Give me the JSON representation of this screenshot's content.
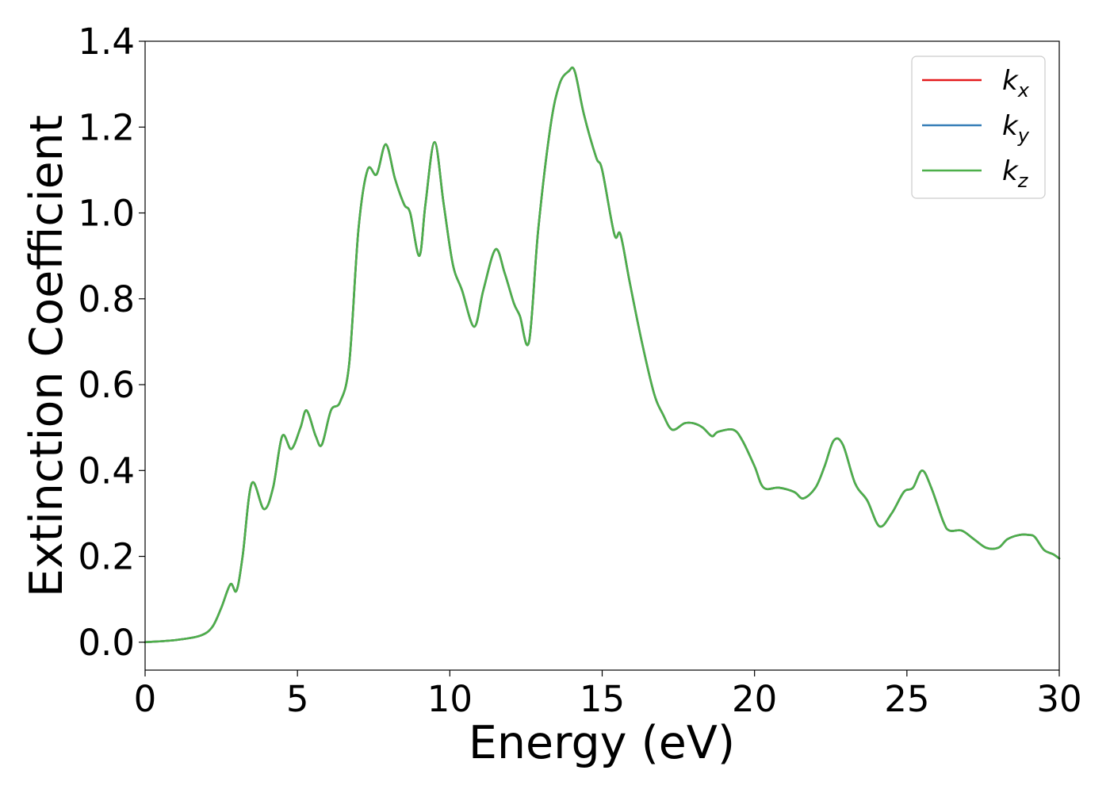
{
  "chart_data": {
    "type": "line",
    "xlabel": "Energy (eV)",
    "ylabel": "Extinction Coefficient",
    "xlim": [
      0,
      30
    ],
    "ylim": [
      -0.065,
      1.4
    ],
    "xticks": [
      0,
      5,
      10,
      15,
      20,
      25,
      30
    ],
    "xtick_labels": [
      "0",
      "5",
      "10",
      "15",
      "20",
      "25",
      "30"
    ],
    "yticks": [
      0.0,
      0.2,
      0.4,
      0.6,
      0.8,
      1.0,
      1.2,
      1.4
    ],
    "ytick_labels": [
      "0.0",
      "0.2",
      "0.4",
      "0.6",
      "0.8",
      "1.0",
      "1.2",
      "1.4"
    ],
    "grid": false,
    "legend_position": "top-right",
    "series": [
      {
        "name": "k",
        "subscript": "x",
        "color": "#e41a1c",
        "x": [
          0,
          1,
          1.8,
          2.2,
          2.5,
          2.8,
          3.0,
          3.2,
          3.5,
          3.9,
          4.2,
          4.5,
          4.8,
          5.1,
          5.3,
          5.6,
          5.8,
          6.1,
          6.4,
          6.7,
          7.0,
          7.3,
          7.6,
          7.9,
          8.2,
          8.5,
          8.7,
          9.0,
          9.2,
          9.5,
          9.8,
          10.1,
          10.4,
          10.8,
          11.1,
          11.5,
          11.8,
          12.1,
          12.3,
          12.6,
          12.9,
          13.3,
          13.6,
          13.9,
          14.1,
          14.4,
          14.8,
          15.0,
          15.4,
          15.6,
          15.9,
          16.3,
          16.7,
          17.0,
          17.3,
          17.7,
          18.0,
          18.3,
          18.6,
          18.8,
          19.3,
          19.6,
          20.0,
          20.3,
          20.8,
          21.3,
          21.6,
          22.0,
          22.3,
          22.6,
          22.9,
          23.3,
          23.7,
          24.1,
          24.5,
          24.9,
          25.2,
          25.5,
          25.8,
          26.2,
          26.4,
          26.8,
          27.2,
          27.6,
          28.0,
          28.3,
          28.7,
          29.0,
          29.2,
          29.5,
          29.8,
          30.0
        ],
        "y": [
          0.0,
          0.005,
          0.015,
          0.035,
          0.08,
          0.135,
          0.12,
          0.2,
          0.37,
          0.31,
          0.36,
          0.48,
          0.45,
          0.5,
          0.54,
          0.48,
          0.46,
          0.54,
          0.56,
          0.65,
          0.96,
          1.1,
          1.09,
          1.16,
          1.08,
          1.02,
          1.0,
          0.9,
          1.02,
          1.165,
          1.02,
          0.88,
          0.82,
          0.735,
          0.82,
          0.915,
          0.86,
          0.79,
          0.76,
          0.7,
          0.96,
          1.2,
          1.3,
          1.33,
          1.33,
          1.23,
          1.13,
          1.1,
          0.95,
          0.95,
          0.84,
          0.7,
          0.58,
          0.53,
          0.495,
          0.51,
          0.51,
          0.5,
          0.48,
          0.49,
          0.495,
          0.47,
          0.41,
          0.36,
          0.36,
          0.35,
          0.335,
          0.36,
          0.41,
          0.47,
          0.46,
          0.37,
          0.33,
          0.27,
          0.3,
          0.35,
          0.36,
          0.4,
          0.36,
          0.28,
          0.26,
          0.26,
          0.24,
          0.22,
          0.22,
          0.24,
          0.25,
          0.25,
          0.245,
          0.215,
          0.205,
          0.195
        ]
      },
      {
        "name": "k",
        "subscript": "y",
        "color": "#377eb8",
        "x": [
          0,
          1,
          1.8,
          2.2,
          2.5,
          2.8,
          3.0,
          3.2,
          3.5,
          3.9,
          4.2,
          4.5,
          4.8,
          5.1,
          5.3,
          5.6,
          5.8,
          6.1,
          6.4,
          6.7,
          7.0,
          7.3,
          7.6,
          7.9,
          8.2,
          8.5,
          8.7,
          9.0,
          9.2,
          9.5,
          9.8,
          10.1,
          10.4,
          10.8,
          11.1,
          11.5,
          11.8,
          12.1,
          12.3,
          12.6,
          12.9,
          13.3,
          13.6,
          13.9,
          14.1,
          14.4,
          14.8,
          15.0,
          15.4,
          15.6,
          15.9,
          16.3,
          16.7,
          17.0,
          17.3,
          17.7,
          18.0,
          18.3,
          18.6,
          18.8,
          19.3,
          19.6,
          20.0,
          20.3,
          20.8,
          21.3,
          21.6,
          22.0,
          22.3,
          22.6,
          22.9,
          23.3,
          23.7,
          24.1,
          24.5,
          24.9,
          25.2,
          25.5,
          25.8,
          26.2,
          26.4,
          26.8,
          27.2,
          27.6,
          28.0,
          28.3,
          28.7,
          29.0,
          29.2,
          29.5,
          29.8,
          30.0
        ],
        "y": [
          0.0,
          0.005,
          0.015,
          0.035,
          0.08,
          0.135,
          0.12,
          0.2,
          0.37,
          0.31,
          0.36,
          0.48,
          0.45,
          0.5,
          0.54,
          0.48,
          0.46,
          0.54,
          0.56,
          0.65,
          0.96,
          1.1,
          1.09,
          1.16,
          1.08,
          1.02,
          1.0,
          0.9,
          1.02,
          1.165,
          1.02,
          0.88,
          0.82,
          0.735,
          0.82,
          0.915,
          0.86,
          0.79,
          0.76,
          0.7,
          0.96,
          1.2,
          1.3,
          1.33,
          1.33,
          1.23,
          1.13,
          1.1,
          0.95,
          0.95,
          0.84,
          0.7,
          0.58,
          0.53,
          0.495,
          0.51,
          0.51,
          0.5,
          0.48,
          0.49,
          0.495,
          0.47,
          0.41,
          0.36,
          0.36,
          0.35,
          0.335,
          0.36,
          0.41,
          0.47,
          0.46,
          0.37,
          0.33,
          0.27,
          0.3,
          0.35,
          0.36,
          0.4,
          0.36,
          0.28,
          0.26,
          0.26,
          0.24,
          0.22,
          0.22,
          0.24,
          0.25,
          0.25,
          0.245,
          0.215,
          0.205,
          0.195
        ]
      },
      {
        "name": "k",
        "subscript": "z",
        "color": "#4daf4a",
        "x": [
          0,
          1,
          1.8,
          2.2,
          2.5,
          2.8,
          3.0,
          3.2,
          3.5,
          3.9,
          4.2,
          4.5,
          4.8,
          5.1,
          5.3,
          5.6,
          5.8,
          6.1,
          6.4,
          6.7,
          7.0,
          7.3,
          7.6,
          7.9,
          8.2,
          8.5,
          8.7,
          9.0,
          9.2,
          9.5,
          9.8,
          10.1,
          10.4,
          10.8,
          11.1,
          11.5,
          11.8,
          12.1,
          12.3,
          12.6,
          12.9,
          13.3,
          13.6,
          13.9,
          14.1,
          14.4,
          14.8,
          15.0,
          15.4,
          15.6,
          15.9,
          16.3,
          16.7,
          17.0,
          17.3,
          17.7,
          18.0,
          18.3,
          18.6,
          18.8,
          19.3,
          19.6,
          20.0,
          20.3,
          20.8,
          21.3,
          21.6,
          22.0,
          22.3,
          22.6,
          22.9,
          23.3,
          23.7,
          24.1,
          24.5,
          24.9,
          25.2,
          25.5,
          25.8,
          26.2,
          26.4,
          26.8,
          27.2,
          27.6,
          28.0,
          28.3,
          28.7,
          29.0,
          29.2,
          29.5,
          29.8,
          30.0
        ],
        "y": [
          0.0,
          0.005,
          0.015,
          0.035,
          0.08,
          0.135,
          0.12,
          0.2,
          0.37,
          0.31,
          0.36,
          0.48,
          0.45,
          0.5,
          0.54,
          0.48,
          0.46,
          0.54,
          0.56,
          0.65,
          0.96,
          1.1,
          1.09,
          1.16,
          1.08,
          1.02,
          1.0,
          0.9,
          1.02,
          1.165,
          1.02,
          0.88,
          0.82,
          0.735,
          0.82,
          0.915,
          0.86,
          0.79,
          0.76,
          0.7,
          0.96,
          1.2,
          1.3,
          1.33,
          1.33,
          1.23,
          1.13,
          1.1,
          0.95,
          0.95,
          0.84,
          0.7,
          0.58,
          0.53,
          0.495,
          0.51,
          0.51,
          0.5,
          0.48,
          0.49,
          0.495,
          0.47,
          0.41,
          0.36,
          0.36,
          0.35,
          0.335,
          0.36,
          0.41,
          0.47,
          0.46,
          0.37,
          0.33,
          0.27,
          0.3,
          0.35,
          0.36,
          0.4,
          0.36,
          0.28,
          0.26,
          0.26,
          0.24,
          0.22,
          0.22,
          0.24,
          0.25,
          0.25,
          0.245,
          0.215,
          0.205,
          0.195
        ]
      }
    ]
  }
}
